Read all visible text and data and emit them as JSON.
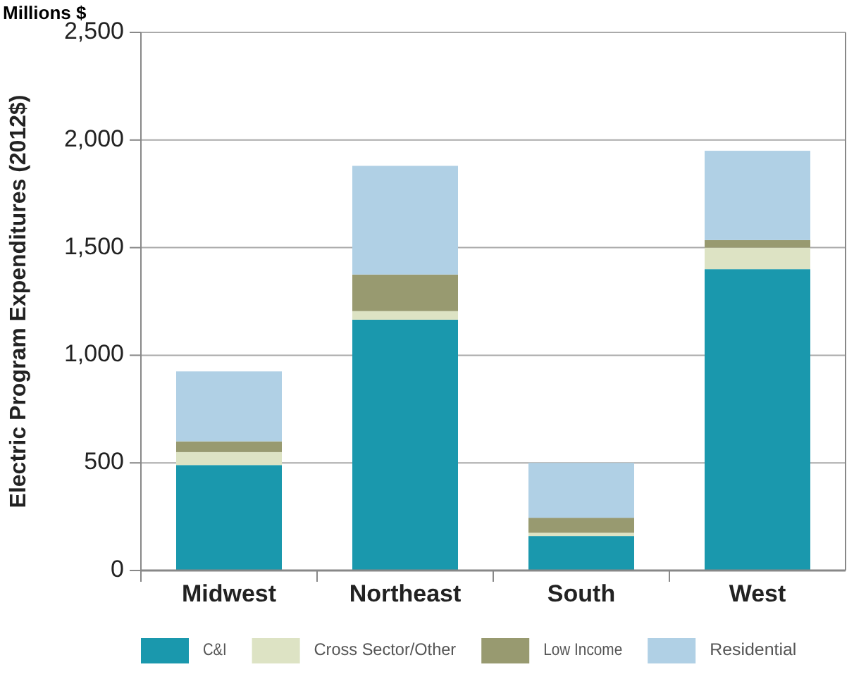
{
  "chart_data": {
    "type": "bar",
    "title": "Millions $",
    "ylabel": "Electric Program Expenditures (2012$)",
    "categories": [
      "Midwest",
      "Northeast",
      "South",
      "West"
    ],
    "stacked": true,
    "series": [
      {
        "name": "C&I",
        "color": "#1a98ad",
        "values": [
          490,
          1165,
          160,
          1400
        ]
      },
      {
        "name": "Cross Sector/Other",
        "color": "#dde3c4",
        "values": [
          60,
          40,
          15,
          100
        ]
      },
      {
        "name": "Low Income",
        "color": "#989a70",
        "values": [
          50,
          170,
          70,
          35
        ]
      },
      {
        "name": "Residential",
        "color": "#b0d0e5",
        "values": [
          325,
          505,
          255,
          415
        ]
      }
    ],
    "ylim": [
      0,
      2500
    ],
    "yticks": [
      {
        "value": 0,
        "label": "0"
      },
      {
        "value": 500,
        "label": "500"
      },
      {
        "value": 1000,
        "label": "1,000"
      },
      {
        "value": 1500,
        "label": "1,500"
      },
      {
        "value": 2000,
        "label": "2,000"
      },
      {
        "value": 2500,
        "label": "2,500"
      }
    ],
    "grid": "y",
    "legend": "bottom"
  }
}
